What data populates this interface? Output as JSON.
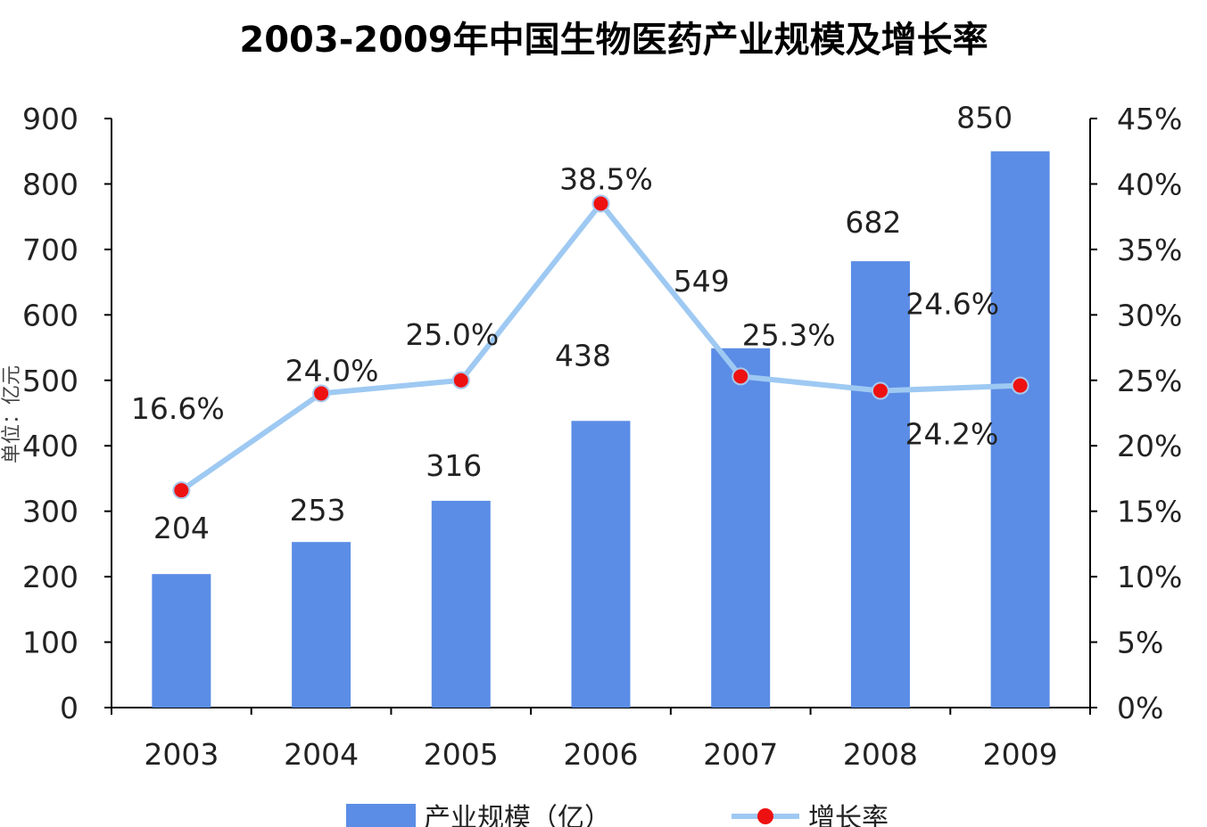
{
  "chart_data": {
    "type": "bar",
    "title": "2003-2009年中国生物医药产业规模及增长率",
    "ylabel": "单位：亿元",
    "categories": [
      "2003",
      "2004",
      "2005",
      "2006",
      "2007",
      "2008",
      "2009"
    ],
    "series": [
      {
        "name": "产业规模（亿）",
        "type": "bar",
        "axis": "left",
        "color": "#5b8de6",
        "values": [
          204,
          253,
          316,
          438,
          549,
          682,
          850
        ],
        "labels": [
          "204",
          "253",
          "316",
          "438",
          "549",
          "682",
          "850"
        ]
      },
      {
        "name": "增长率",
        "type": "line",
        "axis": "right",
        "color": "#9ec9f2",
        "marker_color": "#ee1111",
        "values": [
          16.6,
          24.0,
          25.0,
          38.5,
          25.3,
          24.2,
          24.6
        ],
        "labels": [
          "16.6%",
          "24.0%",
          "25.0%",
          "38.5%",
          "25.3%",
          "24.2%",
          "24.6%"
        ]
      }
    ],
    "y_left": {
      "min": 0,
      "max": 900,
      "ticks": [
        "0",
        "100",
        "200",
        "300",
        "400",
        "500",
        "600",
        "700",
        "800",
        "900"
      ]
    },
    "y_right": {
      "min": 0,
      "max": 45,
      "ticks": [
        "0%",
        "5%",
        "10%",
        "15%",
        "20%",
        "25%",
        "30%",
        "35%",
        "40%",
        "45%"
      ]
    },
    "grid": false,
    "legend_position": "bottom"
  }
}
